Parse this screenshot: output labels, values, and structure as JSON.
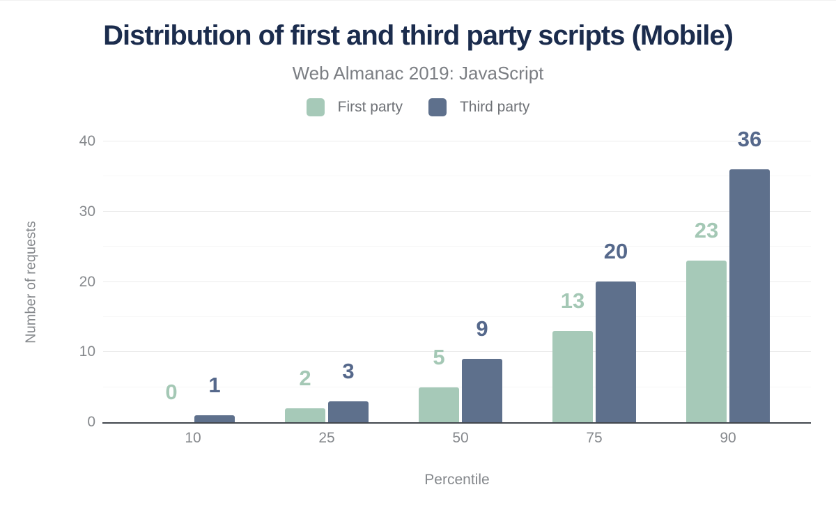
{
  "title": "Distribution of first and third party scripts (Mobile)",
  "subtitle": "Web Almanac 2019: JavaScript",
  "axes": {
    "x_title": "Percentile",
    "y_title": "Number of requests"
  },
  "legend": {
    "items": [
      {
        "label": "First party"
      },
      {
        "label": "Third party"
      }
    ]
  },
  "colors": {
    "first_party_bar": "#a6c9b8",
    "first_party_label": "#a4c8b5",
    "third_party_bar": "#5e708c",
    "third_party_label": "#55688b",
    "title_text": "#1b2c4d",
    "muted_text": "#85888c",
    "legend_text": "#6e7176",
    "gridline_major": "#ececec",
    "gridline_minor": "#f7f7f7",
    "axis_line": "#42474d"
  },
  "chart_data": {
    "type": "bar",
    "title": "Distribution of first and third party scripts (Mobile)",
    "subtitle": "Web Almanac 2019: JavaScript",
    "categories": [
      "10",
      "25",
      "50",
      "75",
      "90"
    ],
    "series": [
      {
        "name": "First party",
        "values": [
          0,
          2,
          5,
          13,
          23
        ]
      },
      {
        "name": "Third party",
        "values": [
          1,
          3,
          9,
          20,
          36
        ]
      }
    ],
    "xlabel": "Percentile",
    "ylabel": "Number of requests",
    "ylim": [
      0,
      40
    ],
    "yticks": [
      0,
      10,
      20,
      30,
      40
    ],
    "minor_yticks": [
      5,
      15,
      25,
      35
    ],
    "grid": "horizontal",
    "legend_position": "top",
    "value_labels": "above-bars"
  }
}
